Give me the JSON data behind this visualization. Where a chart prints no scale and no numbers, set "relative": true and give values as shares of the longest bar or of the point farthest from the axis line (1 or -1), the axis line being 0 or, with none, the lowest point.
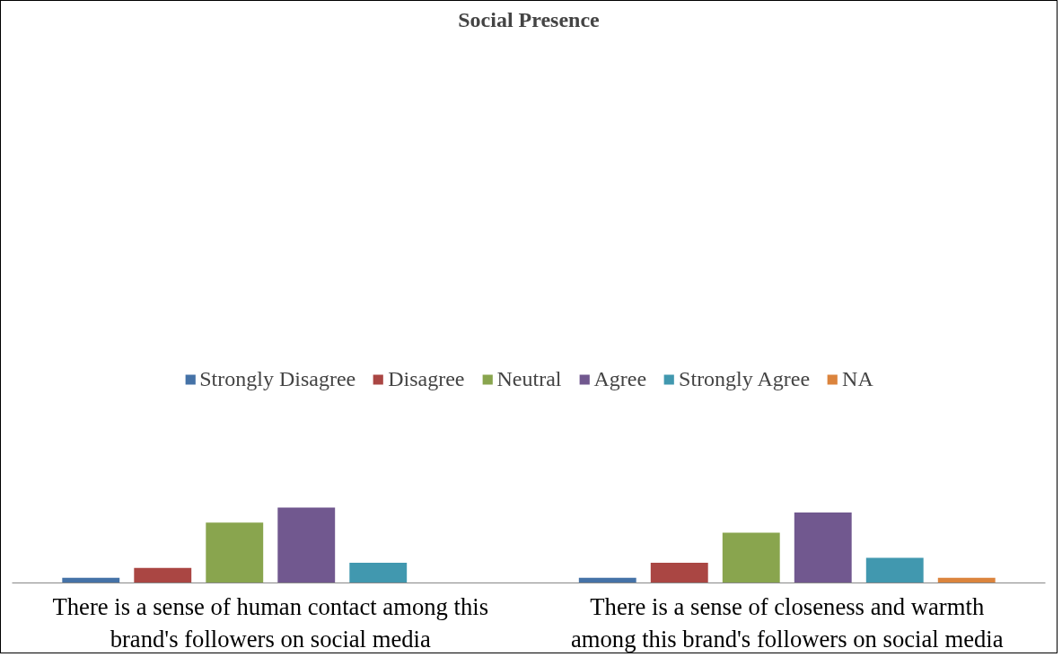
{
  "chart_data": {
    "type": "bar",
    "title": "Social Presence",
    "relative": true,
    "legend": "top",
    "grid": false,
    "categories": [
      "There is a sense of human contact among this brand's followers on social media",
      "There is a sense of closeness and warmth among this brand's followers on social media"
    ],
    "series": [
      {
        "name": "Strongly Disagree",
        "color": "#4572a7",
        "values": [
          0.067,
          0.067
        ]
      },
      {
        "name": "Disagree",
        "color": "#aa4643",
        "values": [
          0.2,
          0.267
        ]
      },
      {
        "name": "Neutral",
        "color": "#89a54e",
        "values": [
          0.8,
          0.667
        ]
      },
      {
        "name": "Agree",
        "color": "#71588f",
        "values": [
          1,
          0.933
        ]
      },
      {
        "name": "Strongly Agree",
        "color": "#4198af",
        "values": [
          0.267,
          0.333
        ]
      },
      {
        "name": "NA",
        "color": "#db843d",
        "values": [
          0,
          0.067
        ]
      }
    ]
  }
}
